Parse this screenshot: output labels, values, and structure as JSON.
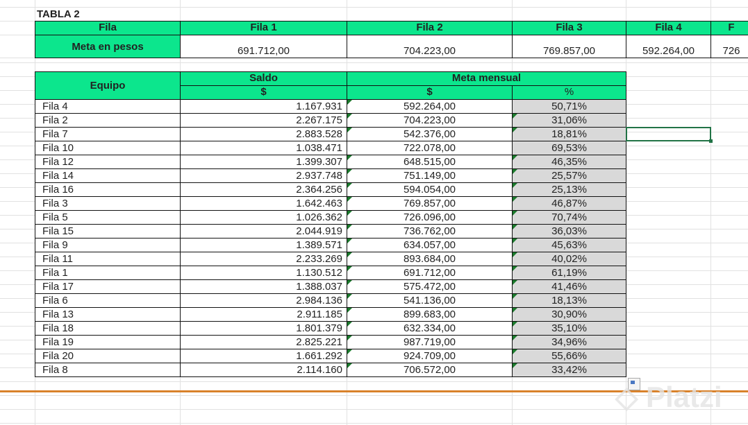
{
  "title": "TABLA 2",
  "top_table": {
    "header_label": "Fila",
    "row_label": "Meta en pesos",
    "columns": [
      {
        "name": "Fila 1",
        "value": "691.712,00"
      },
      {
        "name": "Fila 2",
        "value": "704.223,00"
      },
      {
        "name": "Fila 3",
        "value": "769.857,00"
      },
      {
        "name": "Fila 4",
        "value": "592.264,00"
      },
      {
        "name": "F",
        "value": "726"
      }
    ]
  },
  "main_table": {
    "equipo": "Equipo",
    "saldo": "Saldo",
    "meta": "Meta mensual",
    "currency": "$",
    "percent": "%",
    "rows": [
      [
        "Fila 4",
        "1.167.931",
        "592.264,00",
        "50,71%"
      ],
      [
        "Fila 2",
        "2.267.175",
        "704.223,00",
        "31,06%"
      ],
      [
        "Fila 7",
        "2.883.528",
        "542.376,00",
        "18,81%"
      ],
      [
        "Fila 10",
        "1.038.471",
        "722.078,00",
        "69,53%"
      ],
      [
        "Fila 12",
        "1.399.307",
        "648.515,00",
        "46,35%"
      ],
      [
        "Fila 14",
        "2.937.748",
        "751.149,00",
        "25,57%"
      ],
      [
        "Fila 16",
        "2.364.256",
        "594.054,00",
        "25,13%"
      ],
      [
        "Fila 3",
        "1.642.463",
        "769.857,00",
        "46,87%"
      ],
      [
        "Fila 5",
        "1.026.362",
        "726.096,00",
        "70,74%"
      ],
      [
        "Fila 15",
        "2.044.919",
        "736.762,00",
        "36,03%"
      ],
      [
        "Fila 9",
        "1.389.571",
        "634.057,00",
        "45,63%"
      ],
      [
        "Fila 11",
        "2.233.269",
        "893.684,00",
        "40,02%"
      ],
      [
        "Fila 1",
        "1.130.512",
        "691.712,00",
        "61,19%"
      ],
      [
        "Fila 17",
        "1.388.037",
        "575.472,00",
        "41,46%"
      ],
      [
        "Fila 6",
        "2.984.136",
        "541.136,00",
        "18,13%"
      ],
      [
        "Fila 13",
        "2.911.185",
        "899.683,00",
        "30,90%"
      ],
      [
        "Fila 18",
        "1.801.379",
        "632.334,00",
        "35,10%"
      ],
      [
        "Fila 19",
        "2.825.221",
        "987.719,00",
        "34,96%"
      ],
      [
        "Fila 20",
        "1.661.292",
        "924.709,00",
        "55,66%"
      ],
      [
        "Fila 8",
        "2.114.160",
        "706.572,00",
        "33,42%"
      ]
    ]
  },
  "watermark": "Platzi",
  "colors": {
    "header": "#0ce68d",
    "percent_bg": "#d9d9d9",
    "selection": "#217346",
    "divider": "#d9822b"
  }
}
